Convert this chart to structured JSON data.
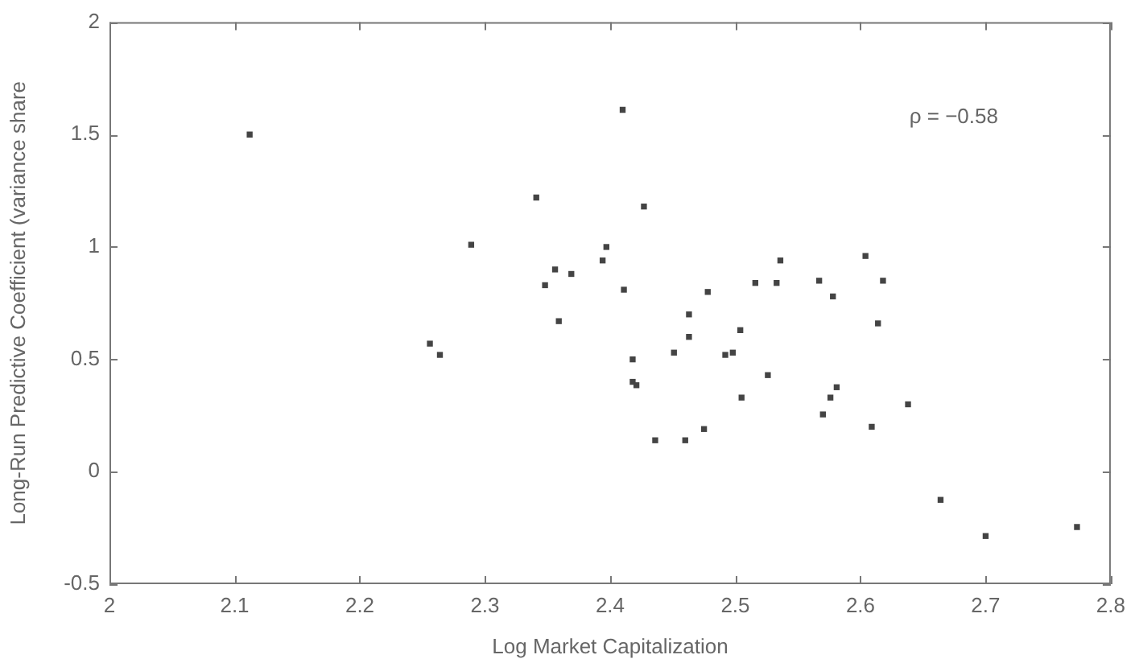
{
  "chart_data": {
    "type": "scatter",
    "xlabel": "Log Market Capitalization",
    "ylabel": "Long-Run Predictive Coefficient (variance share",
    "annotations": [
      "ρ = −0.58"
    ],
    "x": [
      2.112,
      2.256,
      2.264,
      2.289,
      2.341,
      2.348,
      2.356,
      2.359,
      2.369,
      2.394,
      2.397,
      2.41,
      2.411,
      2.418,
      2.418,
      2.421,
      2.427,
      2.436,
      2.451,
      2.46,
      2.463,
      2.463,
      2.475,
      2.478,
      2.492,
      2.498,
      2.504,
      2.505,
      2.516,
      2.526,
      2.533,
      2.536,
      2.567,
      2.57,
      2.576,
      2.578,
      2.581,
      2.604,
      2.609,
      2.614,
      2.618,
      2.638,
      2.664,
      2.7,
      2.773
    ],
    "values": [
      1.5,
      0.57,
      0.52,
      1.01,
      1.22,
      0.83,
      0.9,
      0.67,
      0.88,
      0.94,
      1.0,
      1.61,
      0.81,
      0.5,
      0.4,
      0.385,
      1.18,
      0.14,
      0.53,
      0.14,
      0.7,
      0.6,
      0.19,
      0.8,
      0.52,
      0.53,
      0.63,
      0.33,
      0.84,
      0.43,
      0.84,
      0.94,
      0.85,
      0.255,
      0.33,
      0.78,
      0.376,
      0.96,
      0.2,
      0.66,
      0.85,
      0.3,
      -0.125,
      -0.286,
      -0.246
    ],
    "color": "#444444",
    "marker": "square",
    "xlim": [
      2,
      2.8
    ],
    "xticks": [
      2,
      2.1,
      2.2,
      2.3,
      2.4,
      2.5,
      2.6,
      2.7,
      2.8
    ],
    "ylim": [
      -0.5,
      2
    ],
    "yticks": [
      -0.5,
      0,
      0.5,
      1,
      1.5,
      2
    ]
  }
}
